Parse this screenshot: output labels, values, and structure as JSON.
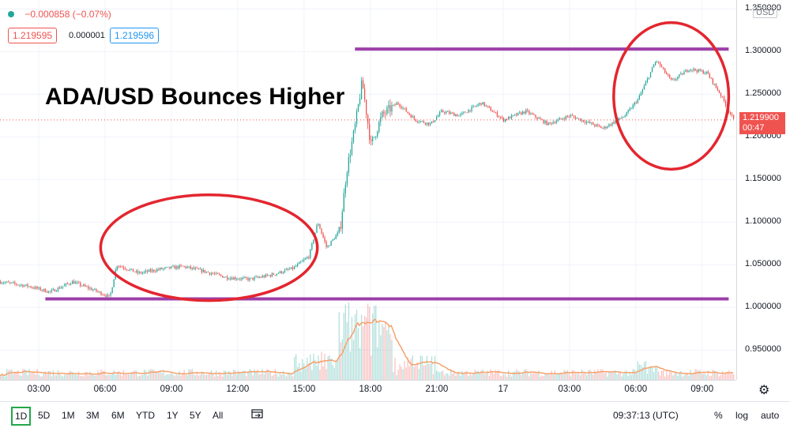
{
  "header": {
    "change": "−0.000858 (−0.07%)",
    "bid": "1.219595",
    "spread": "0.000001",
    "ask": "1.219596",
    "bid_color": "#ef5350",
    "ask_color": "#2196f3"
  },
  "currency": "USD",
  "last_price": {
    "value": "1.219900",
    "countdown": "00:47",
    "color": "#ef5350"
  },
  "range_buttons": [
    "1D",
    "5D",
    "1M",
    "3M",
    "6M",
    "YTD",
    "1Y",
    "5Y",
    "All"
  ],
  "active_range": "1D",
  "clock": "09:37:13 (UTC)",
  "scale_buttons": [
    "%",
    "log",
    "auto"
  ],
  "colors": {
    "up": "#26a69a",
    "down": "#ef5350",
    "annotation_line": "#9c3fa8",
    "annotation_circle": "#e3262f",
    "volume_ma": "#f5a26b"
  },
  "chart_data": {
    "type": "candlestick",
    "title": "ADA/USD Bounces Higher",
    "ylabel": "",
    "xlabel": "",
    "ylim": [
      0.915,
      1.355
    ],
    "xlim": [
      1.25,
      34.4
    ],
    "y_ticks": [
      "1.350000",
      "1.300000",
      "1.250000",
      "1.200000",
      "1.150000",
      "1.100000",
      "1.050000",
      "1.000000",
      "0.950000"
    ],
    "x_ticks": [
      {
        "label": "03:00",
        "x": 3
      },
      {
        "label": "06:00",
        "x": 6
      },
      {
        "label": "09:00",
        "x": 9
      },
      {
        "label": "12:00",
        "x": 12
      },
      {
        "label": "15:00",
        "x": 15
      },
      {
        "label": "18:00",
        "x": 18
      },
      {
        "label": "21:00",
        "x": 21
      },
      {
        "label": "17",
        "x": 24
      },
      {
        "label": "03:00",
        "x": 27
      },
      {
        "label": "06:00",
        "x": 30
      },
      {
        "label": "09:00",
        "x": 33
      }
    ],
    "price_path": [
      [
        1.25,
        1.03
      ],
      [
        2.5,
        1.025
      ],
      [
        3.5,
        1.018
      ],
      [
        4.5,
        1.03
      ],
      [
        5.5,
        1.02
      ],
      [
        6.2,
        1.012
      ],
      [
        6.5,
        1.05
      ],
      [
        7.5,
        1.04
      ],
      [
        8.5,
        1.045
      ],
      [
        9.5,
        1.048
      ],
      [
        10.5,
        1.042
      ],
      [
        11.5,
        1.035
      ],
      [
        12.5,
        1.033
      ],
      [
        13.5,
        1.038
      ],
      [
        14.5,
        1.046
      ],
      [
        15.2,
        1.06
      ],
      [
        15.6,
        1.1
      ],
      [
        16.0,
        1.07
      ],
      [
        16.6,
        1.09
      ],
      [
        16.9,
        1.16
      ],
      [
        17.3,
        1.215
      ],
      [
        17.6,
        1.265
      ],
      [
        18.0,
        1.19
      ],
      [
        18.5,
        1.225
      ],
      [
        19.2,
        1.24
      ],
      [
        20.0,
        1.22
      ],
      [
        20.7,
        1.215
      ],
      [
        21.2,
        1.23
      ],
      [
        22.0,
        1.225
      ],
      [
        23.0,
        1.24
      ],
      [
        24.0,
        1.22
      ],
      [
        25.0,
        1.23
      ],
      [
        26.0,
        1.215
      ],
      [
        27.0,
        1.225
      ],
      [
        28.5,
        1.21
      ],
      [
        29.5,
        1.225
      ],
      [
        30.1,
        1.245
      ],
      [
        30.9,
        1.29
      ],
      [
        31.6,
        1.265
      ],
      [
        32.4,
        1.28
      ],
      [
        33.2,
        1.275
      ],
      [
        33.8,
        1.25
      ],
      [
        34.4,
        1.2199
      ]
    ],
    "volume_note": "volume histogram with moving average, spike near 18:00",
    "annotations": {
      "resistance": {
        "y": 1.303,
        "x_range": [
          17.3,
          34.2
        ]
      },
      "support": {
        "y": 1.01,
        "x_range": [
          3.3,
          34.2
        ]
      },
      "ellipses": [
        {
          "cx": 10.7,
          "cy": 1.07,
          "rx": 4.9,
          "ry": 0.062
        },
        {
          "cx": 31.6,
          "cy": 1.248,
          "rx": 2.6,
          "ry": 0.086
        }
      ]
    }
  }
}
